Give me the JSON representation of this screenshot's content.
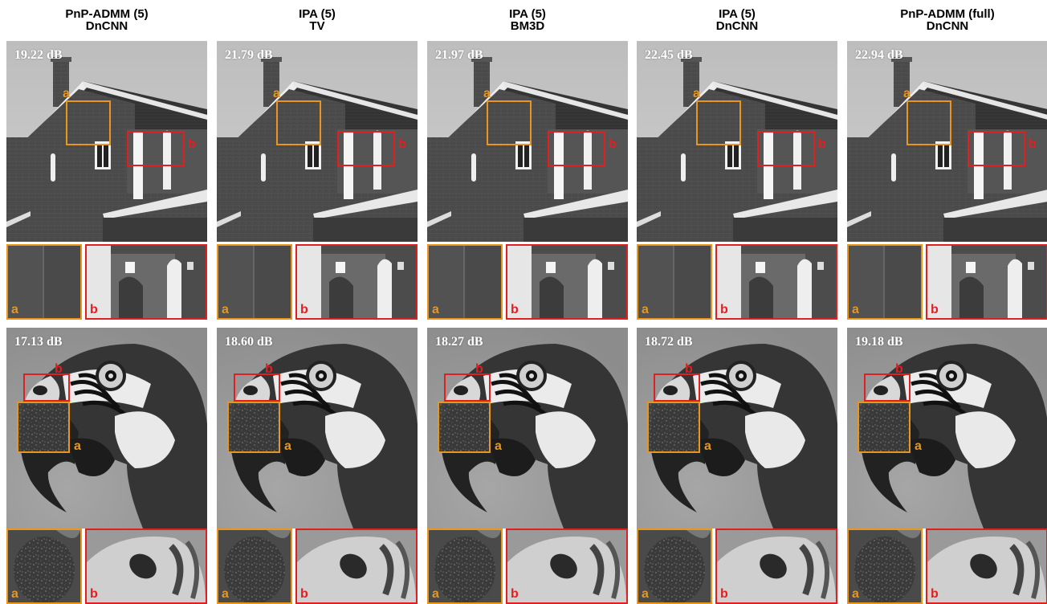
{
  "columns": [
    {
      "title_line1": "PnP-ADMM (5)",
      "title_line2": "DnCNN",
      "house_psnr": "19.22 dB",
      "parrot_psnr": "17.13 dB"
    },
    {
      "title_line1": "IPA (5)",
      "title_line2": "TV",
      "house_psnr": "21.79 dB",
      "parrot_psnr": "18.60 dB"
    },
    {
      "title_line1": "IPA (5)",
      "title_line2": "BM3D",
      "house_psnr": "21.97 dB",
      "parrot_psnr": "18.27 dB"
    },
    {
      "title_line1": "IPA (5)",
      "title_line2": "DnCNN",
      "house_psnr": "22.45 dB",
      "parrot_psnr": "18.72 dB"
    },
    {
      "title_line1": "PnP-ADMM (full)",
      "title_line2": "DnCNN",
      "house_psnr": "22.94 dB",
      "parrot_psnr": "19.18 dB"
    }
  ],
  "labels": {
    "a": "a",
    "b": "b"
  },
  "colors": {
    "box_a": "#e8961e",
    "box_b": "#e02020"
  }
}
